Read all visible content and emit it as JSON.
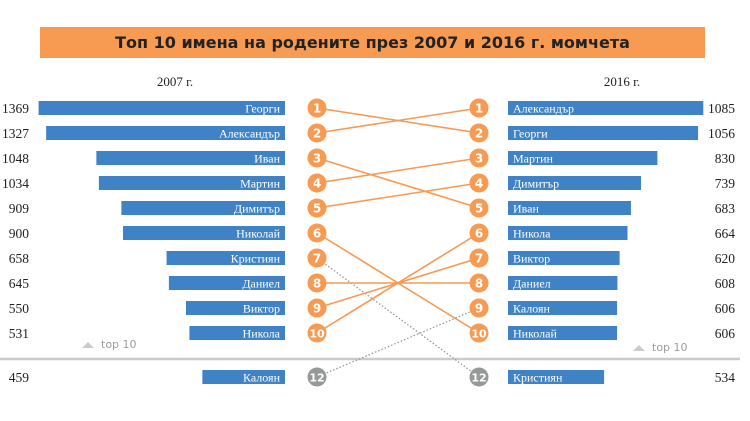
{
  "chart_data": {
    "type": "bar",
    "title": "Топ 10 имена на родените през 2007 и 2016 г. момчета",
    "left": {
      "label": "2007 г.",
      "rows": [
        {
          "rank": 1,
          "name": "Георги",
          "value": 1369
        },
        {
          "rank": 2,
          "name": "Александър",
          "value": 1327
        },
        {
          "rank": 3,
          "name": "Иван",
          "value": 1048
        },
        {
          "rank": 4,
          "name": "Мартин",
          "value": 1034
        },
        {
          "rank": 5,
          "name": "Димитър",
          "value": 909
        },
        {
          "rank": 6,
          "name": "Николай",
          "value": 900
        },
        {
          "rank": 7,
          "name": "Кристиян",
          "value": 658
        },
        {
          "rank": 8,
          "name": "Даниел",
          "value": 645
        },
        {
          "rank": 9,
          "name": "Виктор",
          "value": 550
        },
        {
          "rank": 10,
          "name": "Никола",
          "value": 531
        },
        {
          "rank": 12,
          "name": "Калоян",
          "value": 459
        }
      ]
    },
    "right": {
      "label": "2016 г.",
      "rows": [
        {
          "rank": 1,
          "name": "Александър",
          "value": 1085
        },
        {
          "rank": 2,
          "name": "Георги",
          "value": 1056
        },
        {
          "rank": 3,
          "name": "Мартин",
          "value": 830
        },
        {
          "rank": 4,
          "name": "Димитър",
          "value": 739
        },
        {
          "rank": 5,
          "name": "Иван",
          "value": 683
        },
        {
          "rank": 6,
          "name": "Никола",
          "value": 664
        },
        {
          "rank": 7,
          "name": "Виктор",
          "value": 620
        },
        {
          "rank": 8,
          "name": "Даниел",
          "value": 608
        },
        {
          "rank": 9,
          "name": "Калоян",
          "value": 606
        },
        {
          "rank": 10,
          "name": "Николай",
          "value": 606
        },
        {
          "rank": 12,
          "name": "Кристиян",
          "value": 534
        }
      ]
    },
    "top10_label": "top 10",
    "colors": {
      "bar": "#3F83C6",
      "top10": "#F79A52",
      "outside": "#959A98",
      "title_bg": "#F79A52"
    }
  }
}
